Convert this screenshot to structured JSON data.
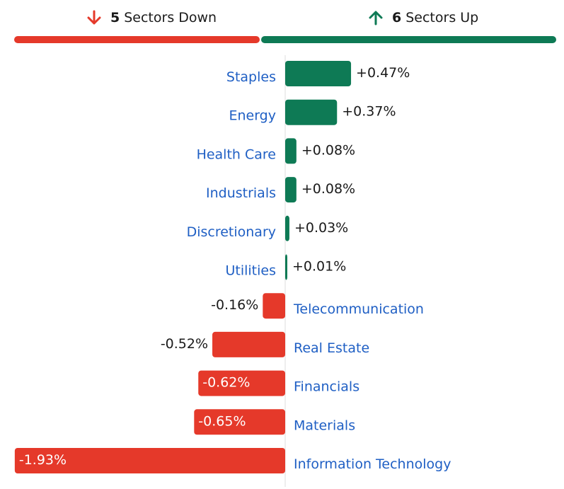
{
  "summary": {
    "down": {
      "count": "5",
      "label": "Sectors Down",
      "color": "#e5392a",
      "icon": "arrow-down-icon"
    },
    "up": {
      "count": "6",
      "label": "Sectors Up",
      "color": "#0e7a55",
      "icon": "arrow-up-icon"
    }
  },
  "chart_data": {
    "type": "bar",
    "orientation": "horizontal-diverging",
    "categories": [
      "Staples",
      "Energy",
      "Health Care",
      "Industrials",
      "Discretionary",
      "Utilities",
      "Telecommunication",
      "Real Estate",
      "Financials",
      "Materials",
      "Information Technology"
    ],
    "values": [
      0.47,
      0.37,
      0.08,
      0.08,
      0.03,
      0.01,
      -0.16,
      -0.52,
      -0.62,
      -0.65,
      -1.93
    ],
    "labels": [
      "+0.47%",
      "+0.37%",
      "+0.08%",
      "+0.08%",
      "+0.03%",
      "+0.01%",
      "-0.16%",
      "-0.52%",
      "-0.62%",
      "-0.65%",
      "-1.93%"
    ],
    "unit": "%",
    "positive_color": "#0e7a55",
    "negative_color": "#e5392a",
    "category_color": "#1f5fc4",
    "grid": false,
    "legend": "none"
  }
}
